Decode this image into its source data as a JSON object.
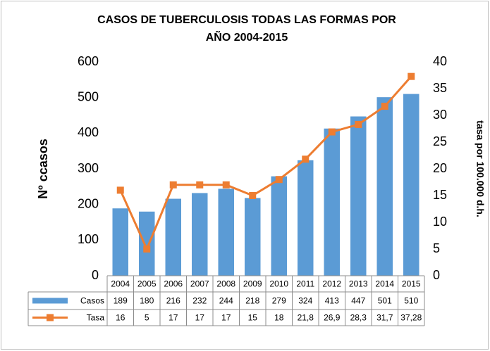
{
  "chart_data": {
    "type": "bar-line",
    "title": "CASOS DE TUBERCULOSIS TODAS LAS FORMAS POR AÑO 2004-2015",
    "ylabel": "Nº ccasos",
    "y2label": "tasa por 100.000 d.h.",
    "categories": [
      "2004",
      "2005",
      "2006",
      "2007",
      "2008",
      "2009",
      "2010",
      "2011",
      "2012",
      "2013",
      "2014",
      "2015"
    ],
    "series": [
      {
        "name": "Casos",
        "type": "bar",
        "color": "#5b9bd5",
        "values": [
          189,
          180,
          216,
          232,
          244,
          218,
          279,
          324,
          413,
          447,
          501,
          510
        ]
      },
      {
        "name": "Tasa",
        "type": "line",
        "axis": "y2",
        "color": "#ed7d31",
        "values": [
          16,
          5,
          17,
          17,
          17,
          15,
          18,
          21.8,
          26.9,
          28.3,
          31.7,
          37.28
        ],
        "value_labels": [
          "16",
          "5",
          "17",
          "17",
          "17",
          "15",
          "18",
          "21,8",
          "26,9",
          "28,3",
          "31,7",
          "37,28"
        ]
      }
    ],
    "ylim": [
      0,
      600
    ],
    "yticks": [
      0,
      100,
      200,
      300,
      400,
      500,
      600
    ],
    "y2lim": [
      0,
      40
    ],
    "y2ticks": [
      0,
      5,
      10,
      15,
      20,
      25,
      30,
      35,
      40
    ],
    "grid": false,
    "data_table": true
  }
}
